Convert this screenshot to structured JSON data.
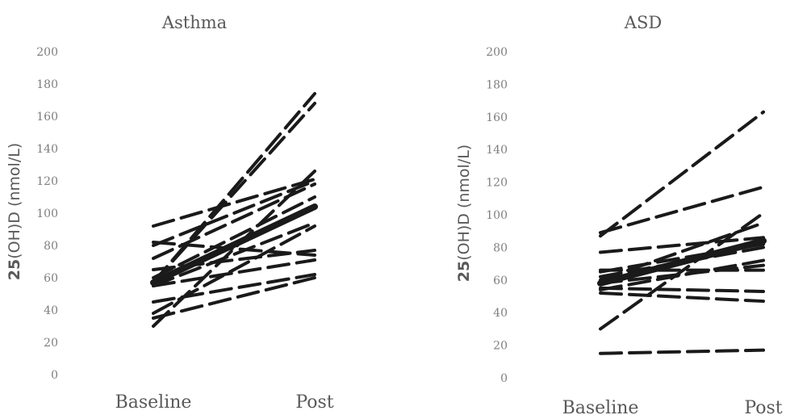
{
  "chart_data": [
    {
      "type": "line",
      "title": "Asthma",
      "ylabel": {
        "bold": "25",
        "rest": "(OH)D (nmol/L)"
      },
      "categories": [
        "Baseline",
        "Post"
      ],
      "yticks": [
        "0",
        "20",
        "40",
        "60",
        "80",
        "100",
        "120",
        "140",
        "160",
        "180",
        "200"
      ],
      "ylim": [
        0,
        200
      ],
      "grid": false,
      "legend": "none",
      "series": [
        {
          "values": [
            57,
            174
          ]
        },
        {
          "values": [
            57,
            168
          ]
        },
        {
          "values": [
            30,
            126
          ]
        },
        {
          "values": [
            92,
            121
          ]
        },
        {
          "values": [
            80,
            120
          ]
        },
        {
          "values": [
            72,
            118
          ]
        },
        {
          "values": [
            60,
            110
          ]
        },
        {
          "values": [
            55,
            94
          ]
        },
        {
          "values": [
            38,
            92
          ]
        },
        {
          "values": [
            65,
            77
          ]
        },
        {
          "values": [
            82,
            74
          ]
        },
        {
          "values": [
            55,
            71
          ]
        },
        {
          "values": [
            45,
            62
          ]
        },
        {
          "values": [
            35,
            60
          ]
        }
      ],
      "mean": {
        "values": [
          57,
          104
        ]
      }
    },
    {
      "type": "line",
      "title": "ASD",
      "ylabel": {
        "bold": "25",
        "rest": "(OH)D (nmol/L)"
      },
      "categories": [
        "Baseline",
        "Post"
      ],
      "yticks": [
        "0",
        "20",
        "40",
        "60",
        "80",
        "100",
        "120",
        "140",
        "160",
        "180",
        "200"
      ],
      "ylim": [
        0,
        200
      ],
      "grid": false,
      "legend": "none",
      "series": [
        {
          "values": [
            87,
            163
          ]
        },
        {
          "values": [
            89,
            117
          ]
        },
        {
          "values": [
            30,
            101
          ]
        },
        {
          "values": [
            60,
            95
          ]
        },
        {
          "values": [
            77,
            86
          ]
        },
        {
          "values": [
            65,
            82
          ]
        },
        {
          "values": [
            62,
            80
          ]
        },
        {
          "values": [
            54,
            72
          ]
        },
        {
          "values": [
            58,
            69
          ]
        },
        {
          "values": [
            66,
            66
          ]
        },
        {
          "values": [
            55,
            53
          ]
        },
        {
          "values": [
            52,
            47
          ]
        },
        {
          "values": [
            15,
            17
          ]
        }
      ],
      "mean": {
        "values": [
          58,
          84
        ]
      }
    }
  ]
}
